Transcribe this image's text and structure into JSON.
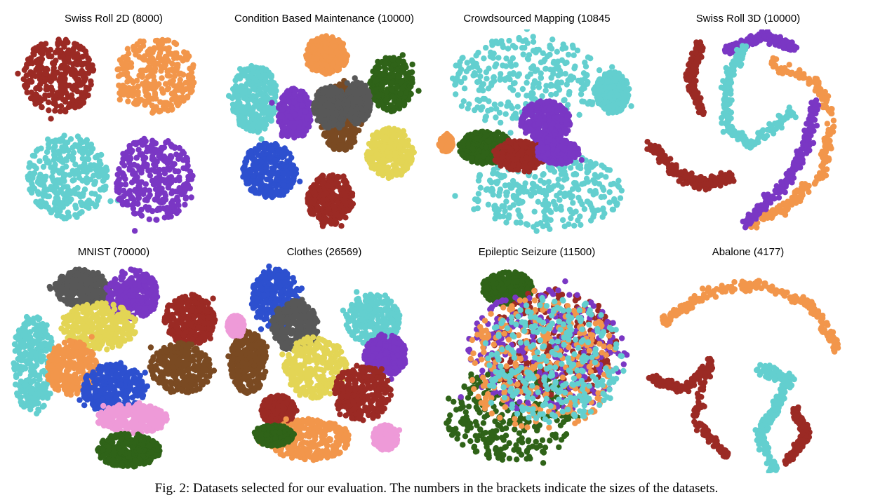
{
  "figure": {
    "caption": "Fig. 2: Datasets selected for our evaluation. The numbers in the brackets indicate the sizes of the datasets."
  },
  "colors": {
    "red": "#9b2a24",
    "orange": "#f2964b",
    "cyan": "#63cfcf",
    "purple": "#7a37c4",
    "green": "#2f6318",
    "gray": "#585858",
    "brown": "#7a4a22",
    "yellow": "#e3d555",
    "blue": "#2d50cf",
    "pink": "#ee9ad8"
  },
  "chart_data": [
    {
      "type": "scatter",
      "title": "Swiss Roll 2D (8000)",
      "point_count": 8000,
      "clusters": [
        {
          "color": "red",
          "cx": 0.24,
          "cy": 0.22,
          "rx": 0.17,
          "ry": 0.18,
          "shape": "blob"
        },
        {
          "color": "orange",
          "cx": 0.7,
          "cy": 0.22,
          "rx": 0.19,
          "ry": 0.18,
          "shape": "blob"
        },
        {
          "color": "cyan",
          "cx": 0.28,
          "cy": 0.7,
          "rx": 0.19,
          "ry": 0.2,
          "shape": "blob"
        },
        {
          "color": "purple",
          "cx": 0.69,
          "cy": 0.71,
          "rx": 0.19,
          "ry": 0.2,
          "shape": "blob"
        }
      ]
    },
    {
      "type": "scatter",
      "title": "Condition  Based Maintenance  (10000)",
      "point_count": 10000,
      "clusters": [
        {
          "color": "orange",
          "cx": 0.51,
          "cy": 0.12,
          "rx": 0.1,
          "ry": 0.09,
          "shape": "blob"
        },
        {
          "color": "cyan",
          "cx": 0.17,
          "cy": 0.33,
          "rx": 0.11,
          "ry": 0.16,
          "shape": "blob"
        },
        {
          "color": "green",
          "cx": 0.82,
          "cy": 0.26,
          "rx": 0.1,
          "ry": 0.13,
          "shape": "blob"
        },
        {
          "color": "purple",
          "cx": 0.36,
          "cy": 0.4,
          "rx": 0.08,
          "ry": 0.12,
          "shape": "blob"
        },
        {
          "color": "brown",
          "cx": 0.58,
          "cy": 0.42,
          "rx": 0.1,
          "ry": 0.16,
          "shape": "blob"
        },
        {
          "color": "gray",
          "cx": 0.53,
          "cy": 0.37,
          "rx": 0.08,
          "ry": 0.1,
          "shape": "blob"
        },
        {
          "color": "gray",
          "cx": 0.66,
          "cy": 0.35,
          "rx": 0.06,
          "ry": 0.1,
          "shape": "blob"
        },
        {
          "color": "yellow",
          "cx": 0.81,
          "cy": 0.59,
          "rx": 0.11,
          "ry": 0.12,
          "shape": "blob"
        },
        {
          "color": "blue",
          "cx": 0.24,
          "cy": 0.67,
          "rx": 0.13,
          "ry": 0.13,
          "shape": "blob"
        },
        {
          "color": "red",
          "cx": 0.53,
          "cy": 0.81,
          "rx": 0.11,
          "ry": 0.12,
          "shape": "blob"
        }
      ]
    },
    {
      "type": "scatter",
      "title": "Crowdsourced  Mapping  (10845",
      "point_count": 10845,
      "clusters": [
        {
          "color": "cyan",
          "cx": 0.45,
          "cy": 0.25,
          "rx": 0.36,
          "ry": 0.22,
          "shape": "blob"
        },
        {
          "color": "cyan",
          "cx": 0.55,
          "cy": 0.77,
          "rx": 0.36,
          "ry": 0.18,
          "shape": "blob"
        },
        {
          "color": "cyan",
          "cx": 0.86,
          "cy": 0.3,
          "rx": 0.08,
          "ry": 0.1,
          "shape": "blob"
        },
        {
          "color": "purple",
          "cx": 0.54,
          "cy": 0.44,
          "rx": 0.12,
          "ry": 0.1,
          "shape": "blob"
        },
        {
          "color": "green",
          "cx": 0.26,
          "cy": 0.56,
          "rx": 0.13,
          "ry": 0.08,
          "shape": "blob"
        },
        {
          "color": "red",
          "cx": 0.42,
          "cy": 0.6,
          "rx": 0.13,
          "ry": 0.07,
          "shape": "blob"
        },
        {
          "color": "orange",
          "cx": 0.07,
          "cy": 0.54,
          "rx": 0.03,
          "ry": 0.04,
          "shape": "blob"
        },
        {
          "color": "purple",
          "cx": 0.6,
          "cy": 0.58,
          "rx": 0.1,
          "ry": 0.06,
          "shape": "blob"
        }
      ]
    },
    {
      "type": "scatter",
      "title": "Swiss Roll 3D (10000)",
      "point_count": 10000,
      "clusters": [
        {
          "color": "purple",
          "shape": "arc",
          "path": [
            [
              0.4,
              0.1
            ],
            [
              0.58,
              0.03
            ],
            [
              0.72,
              0.09
            ]
          ],
          "width": 0.05
        },
        {
          "color": "cyan",
          "shape": "arc",
          "path": [
            [
              0.48,
              0.08
            ],
            [
              0.4,
              0.25
            ],
            [
              0.4,
              0.47
            ],
            [
              0.52,
              0.55
            ],
            [
              0.72,
              0.38
            ]
          ],
          "width": 0.06
        },
        {
          "color": "red",
          "shape": "arc",
          "path": [
            [
              0.27,
              0.08
            ],
            [
              0.22,
              0.23
            ],
            [
              0.28,
              0.4
            ]
          ],
          "width": 0.05
        },
        {
          "color": "red",
          "shape": "arc",
          "path": [
            [
              0.05,
              0.55
            ],
            [
              0.15,
              0.68
            ],
            [
              0.28,
              0.74
            ],
            [
              0.42,
              0.7
            ]
          ],
          "width": 0.06
        },
        {
          "color": "orange",
          "shape": "arc",
          "path": [
            [
              0.6,
              0.15
            ],
            [
              0.82,
              0.25
            ],
            [
              0.9,
              0.42
            ],
            [
              0.85,
              0.68
            ],
            [
              0.68,
              0.85
            ],
            [
              0.5,
              0.93
            ]
          ],
          "width": 0.06
        },
        {
          "color": "purple",
          "shape": "arc",
          "path": [
            [
              0.82,
              0.35
            ],
            [
              0.78,
              0.55
            ],
            [
              0.66,
              0.76
            ],
            [
              0.48,
              0.92
            ]
          ],
          "width": 0.06
        }
      ]
    },
    {
      "type": "scatter",
      "title": "MNIST (70000)",
      "point_count": 70000,
      "clusters": [
        {
          "color": "gray",
          "cx": 0.35,
          "cy": 0.12,
          "rx": 0.13,
          "ry": 0.09,
          "shape": "blob"
        },
        {
          "color": "purple",
          "cx": 0.59,
          "cy": 0.15,
          "rx": 0.12,
          "ry": 0.12,
          "shape": "blob"
        },
        {
          "color": "red",
          "cx": 0.86,
          "cy": 0.27,
          "rx": 0.12,
          "ry": 0.12,
          "shape": "blob"
        },
        {
          "color": "yellow",
          "cx": 0.43,
          "cy": 0.3,
          "rx": 0.18,
          "ry": 0.11,
          "shape": "blob"
        },
        {
          "color": "cyan",
          "cx": 0.12,
          "cy": 0.48,
          "rx": 0.1,
          "ry": 0.24,
          "shape": "blob"
        },
        {
          "color": "orange",
          "cx": 0.3,
          "cy": 0.5,
          "rx": 0.12,
          "ry": 0.13,
          "shape": "blob"
        },
        {
          "color": "brown",
          "cx": 0.82,
          "cy": 0.5,
          "rx": 0.15,
          "ry": 0.12,
          "shape": "blob"
        },
        {
          "color": "blue",
          "cx": 0.5,
          "cy": 0.6,
          "rx": 0.15,
          "ry": 0.12,
          "shape": "blob"
        },
        {
          "color": "pink",
          "cx": 0.59,
          "cy": 0.74,
          "rx": 0.17,
          "ry": 0.07,
          "shape": "blob"
        },
        {
          "color": "green",
          "cx": 0.57,
          "cy": 0.89,
          "rx": 0.15,
          "ry": 0.08,
          "shape": "blob"
        }
      ]
    },
    {
      "type": "scatter",
      "title": "Clothes (26569)",
      "point_count": 26569,
      "clusters": [
        {
          "color": "blue",
          "cx": 0.27,
          "cy": 0.17,
          "rx": 0.12,
          "ry": 0.14,
          "shape": "blob"
        },
        {
          "color": "gray",
          "cx": 0.36,
          "cy": 0.3,
          "rx": 0.11,
          "ry": 0.12,
          "shape": "blob"
        },
        {
          "color": "brown",
          "cx": 0.14,
          "cy": 0.47,
          "rx": 0.09,
          "ry": 0.15,
          "shape": "blob"
        },
        {
          "color": "pink",
          "cx": 0.08,
          "cy": 0.3,
          "rx": 0.04,
          "ry": 0.05,
          "shape": "blob"
        },
        {
          "color": "cyan",
          "cx": 0.73,
          "cy": 0.27,
          "rx": 0.13,
          "ry": 0.12,
          "shape": "blob"
        },
        {
          "color": "purple",
          "cx": 0.79,
          "cy": 0.44,
          "rx": 0.1,
          "ry": 0.1,
          "shape": "blob"
        },
        {
          "color": "yellow",
          "cx": 0.46,
          "cy": 0.5,
          "rx": 0.15,
          "ry": 0.15,
          "shape": "blob"
        },
        {
          "color": "red",
          "cx": 0.68,
          "cy": 0.62,
          "rx": 0.14,
          "ry": 0.13,
          "shape": "blob"
        },
        {
          "color": "red",
          "cx": 0.28,
          "cy": 0.7,
          "rx": 0.08,
          "ry": 0.07,
          "shape": "blob"
        },
        {
          "color": "orange",
          "cx": 0.42,
          "cy": 0.84,
          "rx": 0.2,
          "ry": 0.1,
          "shape": "blob"
        },
        {
          "color": "green",
          "cx": 0.26,
          "cy": 0.82,
          "rx": 0.09,
          "ry": 0.05,
          "shape": "blob"
        },
        {
          "color": "pink",
          "cx": 0.79,
          "cy": 0.83,
          "rx": 0.06,
          "ry": 0.06,
          "shape": "blob"
        }
      ]
    },
    {
      "type": "scatter",
      "title": "Epileptic  Seizure (11500)",
      "point_count": 11500,
      "clusters": [
        {
          "color": "green",
          "cx": 0.38,
          "cy": 0.72,
          "rx": 0.32,
          "ry": 0.22,
          "shape": "blob"
        },
        {
          "color": "green",
          "cx": 0.36,
          "cy": 0.12,
          "rx": 0.12,
          "ry": 0.08,
          "shape": "blob"
        },
        {
          "color": "red",
          "cx": 0.58,
          "cy": 0.4,
          "rx": 0.3,
          "ry": 0.28,
          "shape": "blob"
        },
        {
          "color": "purple",
          "cx": 0.55,
          "cy": 0.42,
          "rx": 0.38,
          "ry": 0.3,
          "shape": "blob"
        },
        {
          "color": "orange",
          "cx": 0.52,
          "cy": 0.48,
          "rx": 0.36,
          "ry": 0.32,
          "shape": "blob"
        },
        {
          "color": "cyan",
          "cx": 0.58,
          "cy": 0.46,
          "rx": 0.34,
          "ry": 0.3,
          "shape": "blob"
        }
      ]
    },
    {
      "type": "scatter",
      "title": "Abalone (4177)",
      "point_count": 4177,
      "clusters": [
        {
          "color": "orange",
          "shape": "arc",
          "path": [
            [
              0.08,
              0.3
            ],
            [
              0.3,
              0.14
            ],
            [
              0.55,
              0.1
            ],
            [
              0.8,
              0.2
            ],
            [
              0.92,
              0.4
            ]
          ],
          "width": 0.06
        },
        {
          "color": "red",
          "shape": "arc",
          "path": [
            [
              0.04,
              0.55
            ],
            [
              0.2,
              0.6
            ],
            [
              0.32,
              0.47
            ],
            [
              0.25,
              0.75
            ],
            [
              0.4,
              0.92
            ]
          ],
          "width": 0.05
        },
        {
          "color": "cyan",
          "shape": "arc",
          "path": [
            [
              0.55,
              0.5
            ],
            [
              0.7,
              0.55
            ],
            [
              0.62,
              0.7
            ],
            [
              0.55,
              0.82
            ],
            [
              0.62,
              0.98
            ]
          ],
          "width": 0.06
        },
        {
          "color": "red",
          "shape": "arc",
          "path": [
            [
              0.72,
              0.7
            ],
            [
              0.78,
              0.82
            ],
            [
              0.68,
              0.95
            ]
          ],
          "width": 0.04
        }
      ]
    }
  ]
}
